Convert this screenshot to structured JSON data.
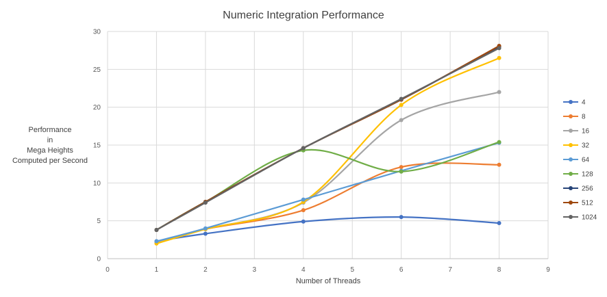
{
  "chart_data": {
    "type": "line",
    "title": "Numeric Integration Performance",
    "xlabel": "Number of Threads",
    "ylabel_lines": [
      "Performance",
      "in",
      "Mega Heights",
      "Computed per Second"
    ],
    "xlim": [
      0,
      9
    ],
    "ylim": [
      0,
      30
    ],
    "x_ticks": [
      0,
      1,
      2,
      3,
      4,
      5,
      6,
      7,
      8,
      9
    ],
    "y_ticks": [
      0,
      5,
      10,
      15,
      20,
      25,
      30
    ],
    "grid": true,
    "smooth": true,
    "legend_position": "right",
    "x": [
      1,
      2,
      4,
      6,
      8
    ],
    "series": [
      {
        "name": "4",
        "color": "#4472C4",
        "values": [
          2.3,
          3.3,
          4.9,
          5.5,
          4.7
        ]
      },
      {
        "name": "8",
        "color": "#ED7D31",
        "values": [
          2.2,
          3.9,
          6.4,
          12.1,
          12.4
        ]
      },
      {
        "name": "16",
        "color": "#A5A5A5",
        "values": [
          2.2,
          3.9,
          7.4,
          18.3,
          22.0
        ]
      },
      {
        "name": "32",
        "color": "#FFC000",
        "values": [
          2.0,
          3.9,
          7.5,
          20.3,
          26.5
        ]
      },
      {
        "name": "64",
        "color": "#5B9BD5",
        "values": [
          2.3,
          4.0,
          7.8,
          11.6,
          15.3
        ]
      },
      {
        "name": "128",
        "color": "#70AD47",
        "values": [
          3.8,
          7.5,
          14.3,
          11.5,
          15.4
        ]
      },
      {
        "name": "256",
        "color": "#264478",
        "values": [
          3.8,
          7.5,
          14.6,
          21.0,
          28.0
        ]
      },
      {
        "name": "512",
        "color": "#9E480E",
        "values": [
          3.8,
          7.5,
          14.6,
          21.0,
          28.1
        ]
      },
      {
        "name": "1024",
        "color": "#636363",
        "values": [
          3.8,
          7.4,
          14.6,
          21.1,
          27.8
        ]
      }
    ]
  }
}
